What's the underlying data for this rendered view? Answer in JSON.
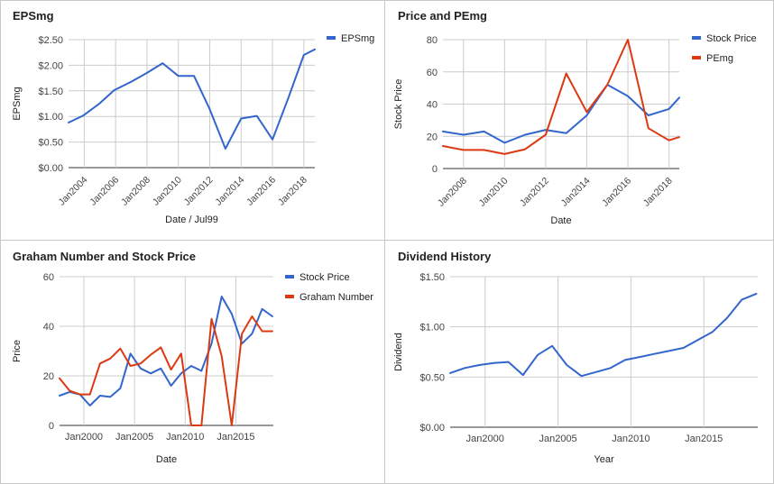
{
  "charts": [
    {
      "title": "EPSmg",
      "xlabel": "Date / Jul99",
      "ylabel": "EPSmg",
      "chart_data": {
        "type": "line",
        "x_range": [
          2003.0,
          2018.7
        ],
        "ylim": [
          0,
          2.5
        ],
        "yticks": [
          0,
          0.5,
          1.0,
          1.5,
          2.0,
          2.5
        ],
        "ytick_labels": [
          "$0.00",
          "$0.50",
          "$1.00",
          "$1.50",
          "$2.00",
          "$2.50"
        ],
        "xticks": [
          2004,
          2006,
          2008,
          2010,
          2012,
          2014,
          2016,
          2018
        ],
        "xtick_labels": [
          "Jan2004",
          "Jan2006",
          "Jan2008",
          "Jan2010",
          "Jan2012",
          "Jan2014",
          "Jan2016",
          "Jan2018"
        ],
        "grid": true,
        "legend_position": "top-right",
        "x_tick_rotation": -45,
        "series": [
          {
            "name": "EPSmg",
            "color": "#3366cc",
            "x": [
              2003.0,
              2003.95,
              2004.96,
              2005.9,
              2007.0,
              2008.0,
              2009.0,
              2010.0,
              2011.0,
              2012.0,
              2013.0,
              2014.0,
              2015.0,
              2016.0,
              2017.0,
              2018.0,
              2018.7
            ],
            "y": [
              0.88,
              1.02,
              1.25,
              1.51,
              1.68,
              1.85,
              2.04,
              1.79,
              1.79,
              1.14,
              0.37,
              0.96,
              1.01,
              0.55,
              1.35,
              2.2,
              2.31
            ]
          }
        ]
      }
    },
    {
      "title": "Price and PEmg",
      "xlabel": "Date",
      "ylabel": "Stock Price",
      "chart_data": {
        "type": "line",
        "x_range": [
          2007.0,
          2018.5
        ],
        "ylim": [
          0,
          80
        ],
        "yticks": [
          0,
          20,
          40,
          60,
          80
        ],
        "ytick_labels": [
          "0",
          "20",
          "40",
          "60",
          "80"
        ],
        "xticks": [
          2008,
          2010,
          2012,
          2014,
          2016,
          2018
        ],
        "xtick_labels": [
          "Jan2008",
          "Jan2010",
          "Jan2012",
          "Jan2014",
          "Jan2016",
          "Jan2018"
        ],
        "grid": true,
        "legend_position": "top-right",
        "x_tick_rotation": -45,
        "series": [
          {
            "name": "Stock Price",
            "color": "#3366cc",
            "x": [
              2007.0,
              2008.0,
              2009.0,
              2010.0,
              2011.0,
              2012.0,
              2013.0,
              2014.0,
              2015.0,
              2016.0,
              2017.0,
              2018.0,
              2018.5
            ],
            "y": [
              23,
              21,
              23,
              16,
              21,
              24,
              22,
              33,
              52,
              45,
              33,
              37,
              44
            ]
          },
          {
            "name": "PEmg",
            "color": "#dc3912",
            "x": [
              2007.0,
              2008.0,
              2009.0,
              2010.0,
              2011.0,
              2012.0,
              2013.0,
              2014.0,
              2015.0,
              2016.0,
              2017.0,
              2018.0,
              2018.5
            ],
            "y": [
              14,
              11.5,
              11.5,
              9,
              12,
              21,
              59,
              35,
              52,
              80,
              25,
              17.5,
              19.5
            ]
          }
        ]
      }
    },
    {
      "title": "Graham Number and Stock Price",
      "xlabel": "Date",
      "ylabel": "Price",
      "chart_data": {
        "type": "line",
        "x_range": [
          1997.6,
          2018.7
        ],
        "ylim": [
          0,
          60
        ],
        "yticks": [
          0,
          20,
          40,
          60
        ],
        "ytick_labels": [
          "0",
          "20",
          "40",
          "60"
        ],
        "xticks": [
          2000,
          2005,
          2010,
          2015
        ],
        "xtick_labels": [
          "Jan2000",
          "Jan2005",
          "Jan2010",
          "Jan2015"
        ],
        "grid": true,
        "legend_position": "top-right",
        "series": [
          {
            "name": "Stock Price",
            "color": "#3366cc",
            "x": [
              1997.6,
              1998.6,
              1999.6,
              2000.6,
              2001.6,
              2002.6,
              2003.6,
              2004.6,
              2005.6,
              2006.6,
              2007.6,
              2008.6,
              2009.6,
              2010.6,
              2011.6,
              2012.6,
              2013.6,
              2014.6,
              2015.6,
              2016.6,
              2017.6,
              2018.6
            ],
            "y": [
              12,
              13.5,
              12.5,
              8,
              12,
              11.5,
              15,
              29,
              23,
              21,
              23,
              16,
              21,
              24,
              22,
              33,
              52,
              45,
              33,
              37,
              47,
              44
            ]
          },
          {
            "name": "Graham Number",
            "color": "#dc3912",
            "x": [
              1997.6,
              1998.6,
              1999.6,
              2000.6,
              2001.6,
              2002.6,
              2003.6,
              2004.6,
              2005.6,
              2006.6,
              2007.6,
              2008.6,
              2009.6,
              2010.6,
              2011.6,
              2012.6,
              2013.6,
              2014.6,
              2015.6,
              2016.6,
              2017.6,
              2018.6
            ],
            "y": [
              19,
              14,
              12.5,
              12.5,
              25,
              27,
              31,
              24,
              25,
              28.5,
              31.5,
              22.5,
              29,
              0,
              0,
              43,
              28,
              0,
              37,
              44,
              38,
              38
            ]
          }
        ]
      }
    },
    {
      "title": "Dividend History",
      "xlabel": "Year",
      "ylabel": "Dividend",
      "chart_data": {
        "type": "line",
        "x_range": [
          1997.6,
          2018.7
        ],
        "ylim": [
          0,
          1.5
        ],
        "yticks": [
          0,
          0.5,
          1.0,
          1.5
        ],
        "ytick_labels": [
          "$0.00",
          "$0.50",
          "$1.00",
          "$1.50"
        ],
        "xticks": [
          2000,
          2005,
          2010,
          2015
        ],
        "xtick_labels": [
          "Jan2000",
          "Jan2005",
          "Jan2010",
          "Jan2015"
        ],
        "grid": true,
        "legend_position": "none",
        "series": [
          {
            "name": "",
            "color": "#3366cc",
            "x": [
              1997.6,
              1998.6,
              1999.6,
              2000.6,
              2001.6,
              2002.6,
              2003.6,
              2004.6,
              2005.6,
              2006.6,
              2007.6,
              2008.6,
              2009.6,
              2010.6,
              2011.6,
              2012.6,
              2013.6,
              2014.6,
              2015.6,
              2016.6,
              2017.6,
              2018.6
            ],
            "y": [
              0.54,
              0.59,
              0.62,
              0.64,
              0.65,
              0.52,
              0.72,
              0.81,
              0.62,
              0.51,
              0.55,
              0.59,
              0.67,
              0.7,
              0.73,
              0.76,
              0.79,
              0.87,
              0.95,
              1.09,
              1.27,
              1.33
            ]
          }
        ]
      }
    }
  ]
}
